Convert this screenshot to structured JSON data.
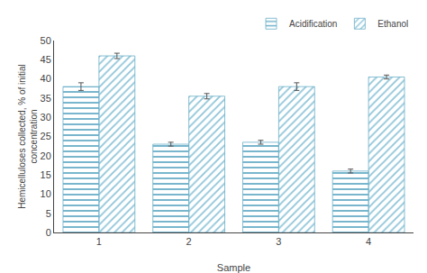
{
  "chart_data": {
    "type": "bar",
    "categories": [
      "1",
      "2",
      "3",
      "4"
    ],
    "series": [
      {
        "name": "Acidification",
        "color": "#a8cfe0",
        "values": [
          38.0,
          23.0,
          23.5,
          16.0
        ],
        "errors": [
          1.0,
          0.5,
          0.5,
          0.5
        ]
      },
      {
        "name": "Ethanol",
        "color": "#d0e8f4",
        "values": [
          46.0,
          35.5,
          38.0,
          40.5
        ],
        "errors": [
          0.7,
          0.7,
          1.0,
          0.5
        ]
      }
    ],
    "xlabel": "Sample",
    "ylabel": "Hemicelluloses collected, % of initial\nconcentration",
    "ylim": [
      0,
      50
    ],
    "yticks": [
      0,
      5,
      10,
      15,
      20,
      25,
      30,
      35,
      40,
      45,
      50
    ],
    "grid": false,
    "legend": "upper right"
  }
}
